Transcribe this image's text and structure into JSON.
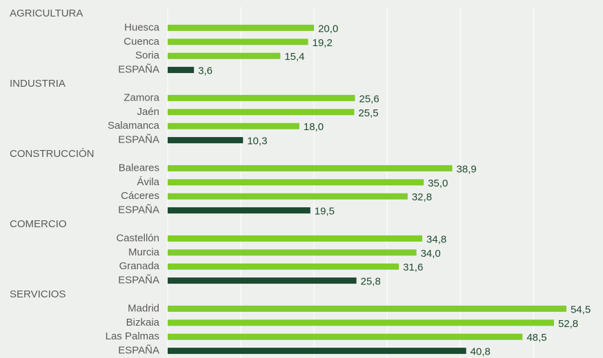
{
  "chart_data": {
    "type": "bar",
    "orientation": "horizontal",
    "xlim": [
      0,
      59.5
    ],
    "xticks": [
      0,
      10,
      20,
      30,
      40,
      50
    ],
    "grid": true,
    "groups": [
      {
        "name": "AGRICULTURA",
        "categories": [
          "Huesca",
          "Cuenca",
          "Soria",
          "ESPAÑA"
        ],
        "values": [
          20.0,
          19.2,
          15.4,
          3.6
        ],
        "value_labels": [
          "20,0",
          "19,2",
          "15,4",
          "3,6"
        ],
        "colors": [
          "#7fcc2a",
          "#7fcc2a",
          "#7fcc2a",
          "#1b4a31"
        ]
      },
      {
        "name": "INDUSTRIA",
        "categories": [
          "Zamora",
          "Jaén",
          "Salamanca",
          "ESPAÑA"
        ],
        "values": [
          25.6,
          25.5,
          18.0,
          10.3
        ],
        "value_labels": [
          "25,6",
          "25,5",
          "18,0",
          "10,3"
        ],
        "colors": [
          "#7fcc2a",
          "#7fcc2a",
          "#7fcc2a",
          "#1b4a31"
        ]
      },
      {
        "name": "CONSTRUCCIÓN",
        "categories": [
          "Baleares",
          "Ávila",
          "Cáceres",
          "ESPAÑA"
        ],
        "values": [
          38.9,
          35.0,
          32.8,
          19.5
        ],
        "value_labels": [
          "38,9",
          "35,0",
          "32,8",
          "19,5"
        ],
        "colors": [
          "#7fcc2a",
          "#7fcc2a",
          "#7fcc2a",
          "#1b4a31"
        ]
      },
      {
        "name": "COMERCIO",
        "categories": [
          "Castellón",
          "Murcia",
          "Granada",
          "ESPAÑA"
        ],
        "values": [
          34.8,
          34.0,
          31.6,
          25.8
        ],
        "value_labels": [
          "34,8",
          "34,0",
          "31,6",
          "25,8"
        ],
        "colors": [
          "#7fcc2a",
          "#7fcc2a",
          "#7fcc2a",
          "#1b4a31"
        ]
      },
      {
        "name": "SERVICIOS",
        "categories": [
          "Madrid",
          "Bizkaia",
          "Las Palmas",
          "ESPAÑA"
        ],
        "values": [
          54.5,
          52.8,
          48.5,
          40.8
        ],
        "value_labels": [
          "54,5",
          "52,8",
          "48,5",
          "40,8"
        ],
        "colors": [
          "#7fcc2a",
          "#7fcc2a",
          "#7fcc2a",
          "#1b4a31"
        ]
      }
    ]
  }
}
